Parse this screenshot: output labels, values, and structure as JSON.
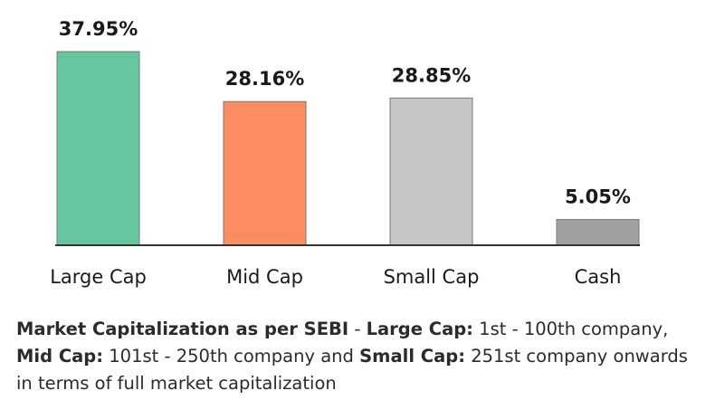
{
  "chart_data": {
    "type": "bar",
    "categories": [
      "Large Cap",
      "Mid Cap",
      "Small Cap",
      "Cash"
    ],
    "values": [
      37.95,
      28.16,
      28.85,
      5.05
    ],
    "value_labels": [
      "37.95%",
      "28.16%",
      "28.85%",
      "5.05%"
    ],
    "colors": [
      "#66c6a0",
      "#fc8c62",
      "#c6c6c6",
      "#a0a0a0"
    ],
    "bar_outline": "#7a7a7a",
    "baseline_color": "#333333",
    "ylim": [
      0,
      40
    ],
    "grid": false,
    "title": "",
    "xlabel": "",
    "ylabel": ""
  },
  "note": {
    "heading": "Market Capitalization as per SEBI",
    "sep1": " - ",
    "large_label": "Large Cap:",
    "large_text": " 1st - 100th company, ",
    "mid_label": "Mid Cap:",
    "mid_text": " 101st - 250th company and ",
    "small_label": "Small Cap:",
    "small_text": " 251st company onwards in terms of full market capitalization"
  }
}
